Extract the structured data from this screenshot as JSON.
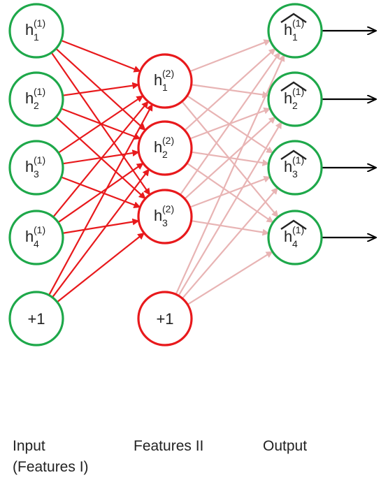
{
  "colors": {
    "green": "#1ea84a",
    "red": "#e8191c",
    "pink": "#e8b4b4",
    "black": "#000000"
  },
  "labels": {
    "input_line1": "Input",
    "input_line2": "(Features I)",
    "features2": "Features II",
    "output": "Output"
  },
  "nodes": {
    "input": [
      {
        "base": "h",
        "sub": "1",
        "sup": "(1)"
      },
      {
        "base": "h",
        "sub": "2",
        "sup": "(1)"
      },
      {
        "base": "h",
        "sub": "3",
        "sup": "(1)"
      },
      {
        "base": "h",
        "sub": "4",
        "sup": "(1)"
      }
    ],
    "input_bias": "+1",
    "hidden": [
      {
        "base": "h",
        "sub": "1",
        "sup": "(2)"
      },
      {
        "base": "h",
        "sub": "2",
        "sup": "(2)"
      },
      {
        "base": "h",
        "sub": "3",
        "sup": "(2)"
      }
    ],
    "hidden_bias": "+1",
    "output": [
      {
        "base": "h",
        "sub": "1",
        "sup": "(1)",
        "hat": true
      },
      {
        "base": "h",
        "sub": "2",
        "sup": "(1)",
        "hat": true
      },
      {
        "base": "h",
        "sub": "3",
        "sup": "(1)",
        "hat": true
      },
      {
        "base": "h",
        "sub": "4",
        "sup": "(1)",
        "hat": true
      }
    ]
  }
}
